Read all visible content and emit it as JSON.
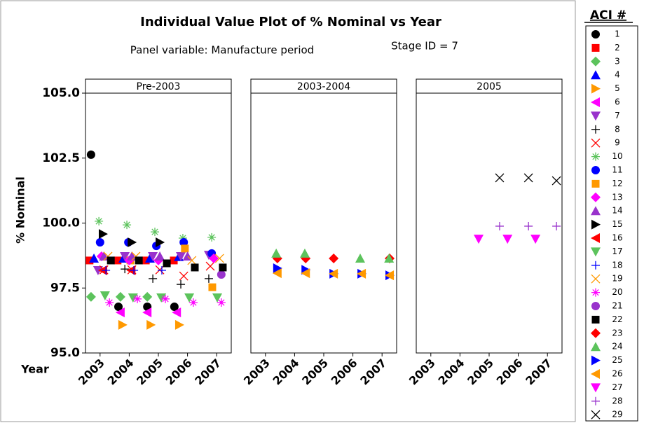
{
  "chart_data": {
    "type": "scatter",
    "title": "Individual Value Plot of % Nominal vs Year",
    "subtitle": "Panel variable: Manufacture period",
    "annotation": "Stage ID = 7",
    "ylabel": "% Nominal",
    "xlabel": "Year",
    "legend_title": "ACI #",
    "panels": [
      "Pre-2003",
      "2003-2004",
      "2005"
    ],
    "xlim": [
      2002.5,
      2007.5
    ],
    "xticks": [
      2003,
      2004,
      2005,
      2006,
      2007
    ],
    "ylim": [
      95,
      105
    ],
    "yticks": [
      {
        "value": 95,
        "label": "95.0"
      },
      97.5,
      {
        "value": 100,
        "label": "100.0"
      },
      102.5,
      {
        "value": 105,
        "label": "105.0"
      }
    ],
    "series": [
      {
        "name": "1",
        "color": "#000000",
        "marker": "circle",
        "panel": [
          "Pre-2003",
          "Pre-2003",
          "Pre-2003",
          "Pre-2003"
        ],
        "x": [
          2002.69,
          2003.63,
          2004.62,
          2005.55
        ],
        "values": [
          102.63,
          96.78,
          96.78,
          96.78
        ]
      },
      {
        "name": "2",
        "color": "#ff0000",
        "marker": "square",
        "panel": [
          "Pre-2003",
          "Pre-2003",
          "Pre-2003",
          "Pre-2003"
        ],
        "x": [
          2002.64,
          2003.6,
          2004.57,
          2005.53
        ],
        "values": [
          98.56,
          98.56,
          98.56,
          98.56
        ]
      },
      {
        "name": "3",
        "color": "#5cc35c",
        "marker": "diamond",
        "panel": [
          "Pre-2003",
          "Pre-2003",
          "Pre-2003"
        ],
        "x": [
          2002.69,
          2003.7,
          2004.62
        ],
        "values": [
          97.16,
          97.16,
          97.16
        ]
      },
      {
        "name": "4",
        "color": "#0000ff",
        "marker": "triangle",
        "panel": [
          "Pre-2003",
          "Pre-2003",
          "Pre-2003",
          "Pre-2003"
        ],
        "x": [
          2002.79,
          2003.8,
          2004.71,
          2005.7
        ],
        "values": [
          98.64,
          98.64,
          98.64,
          98.7
        ]
      },
      {
        "name": "5",
        "color": "#ff9900",
        "marker": "right",
        "panel": [
          "Pre-2003",
          "Pre-2003",
          "Pre-2003"
        ],
        "x": [
          2003.77,
          2004.74,
          2005.72
        ],
        "values": [
          96.08,
          96.08,
          96.08
        ]
      },
      {
        "name": "6",
        "color": "#ff00ff",
        "marker": "left",
        "panel": [
          "Pre-2003",
          "Pre-2003",
          "Pre-2003"
        ],
        "x": [
          2003.7,
          2004.62,
          2005.63
        ],
        "values": [
          96.56,
          96.56,
          96.56
        ]
      },
      {
        "name": "7",
        "color": "#9933cc",
        "marker": "down",
        "panel": [
          "Pre-2003",
          "Pre-2003",
          "Pre-2003",
          "Pre-2003",
          "Pre-2003"
        ],
        "x": [
          2002.93,
          2003.85,
          2004.81,
          2005.77,
          2006.73
        ],
        "values": [
          98.18,
          98.72,
          98.72,
          98.72,
          98.77
        ]
      },
      {
        "name": "8",
        "color": "#000000",
        "marker": "plus",
        "panel": [
          "Pre-2003",
          "Pre-2003",
          "Pre-2003",
          "Pre-2003"
        ],
        "x": [
          2003.85,
          2004.81,
          2005.77,
          2006.73
        ],
        "values": [
          98.23,
          97.86,
          97.64,
          97.86
        ]
      },
      {
        "name": "9",
        "color": "#ff0000",
        "marker": "x",
        "panel": [
          "Pre-2003",
          "Pre-2003",
          "Pre-2003",
          "Pre-2003",
          "Pre-2003"
        ],
        "x": [
          2003.13,
          2004.09,
          2005.05,
          2005.87,
          2006.78
        ],
        "values": [
          98.2,
          98.2,
          98.2,
          97.96,
          98.34
        ]
      },
      {
        "name": "10",
        "color": "#5cc35c",
        "marker": "asterisk",
        "panel": [
          "Pre-2003",
          "Pre-2003",
          "Pre-2003",
          "Pre-2003",
          "Pre-2003"
        ],
        "x": [
          2002.96,
          2003.92,
          2004.88,
          2005.84,
          2006.83
        ],
        "values": [
          100.07,
          99.93,
          99.66,
          99.42,
          99.45
        ]
      },
      {
        "name": "11",
        "color": "#0000ff",
        "marker": "circle",
        "panel": [
          "Pre-2003",
          "Pre-2003",
          "Pre-2003",
          "Pre-2003",
          "Pre-2003"
        ],
        "x": [
          2003.0,
          2003.97,
          2004.93,
          2005.87,
          2006.83
        ],
        "values": [
          99.26,
          99.26,
          99.12,
          99.26,
          98.83
        ]
      },
      {
        "name": "12",
        "color": "#ff9900",
        "marker": "square",
        "panel": [
          "Pre-2003",
          "Pre-2003",
          "Pre-2003"
        ],
        "x": [
          2004.04,
          2005.91,
          2006.85
        ],
        "values": [
          98.56,
          99.02,
          97.53
        ]
      },
      {
        "name": "13",
        "color": "#ff00ff",
        "marker": "diamond",
        "panel": [
          "Pre-2003",
          "Pre-2003",
          "Pre-2003",
          "Pre-2003"
        ],
        "x": [
          2003.05,
          2004.0,
          2005.0,
          2006.9
        ],
        "values": [
          98.72,
          98.56,
          98.56,
          98.64
        ]
      },
      {
        "name": "14",
        "color": "#9933cc",
        "marker": "triangle",
        "panel": [
          "Pre-2003",
          "Pre-2003",
          "Pre-2003",
          "Pre-2003"
        ],
        "x": [
          2003.13,
          2004.09,
          2005.05,
          2006.0
        ],
        "values": [
          98.72,
          98.72,
          98.72,
          98.72
        ]
      },
      {
        "name": "15",
        "color": "#000000",
        "marker": "right",
        "panel": [
          "Pre-2003",
          "Pre-2003",
          "Pre-2003"
        ],
        "x": [
          2003.1,
          2004.09,
          2005.05
        ],
        "values": [
          99.58,
          99.26,
          99.26
        ]
      },
      {
        "name": "16",
        "color": "#ff0000",
        "marker": "left",
        "panel": [
          "Pre-2003",
          "Pre-2003"
        ],
        "x": [
          2003.1,
          2004.07
        ],
        "values": [
          98.18,
          98.18
        ]
      },
      {
        "name": "17",
        "color": "#5cc35c",
        "marker": "down",
        "panel": [
          "Pre-2003",
          "Pre-2003",
          "Pre-2003",
          "Pre-2003",
          "Pre-2003"
        ],
        "x": [
          2003.17,
          2004.13,
          2005.1,
          2006.06,
          2007.02
        ],
        "values": [
          97.21,
          97.13,
          97.13,
          97.13,
          97.13
        ]
      },
      {
        "name": "18",
        "color": "#0000ff",
        "marker": "plus",
        "panel": [
          "Pre-2003",
          "Pre-2003",
          "Pre-2003"
        ],
        "x": [
          2003.2,
          2004.16,
          2005.12
        ],
        "values": [
          98.18,
          98.18,
          98.18
        ]
      },
      {
        "name": "19",
        "color": "#ff9900",
        "marker": "x",
        "panel": [
          "Pre-2003",
          "Pre-2003",
          "Pre-2003",
          "Pre-2003"
        ],
        "x": [
          2003.27,
          2004.23,
          2006.15,
          2007.1
        ],
        "values": [
          98.72,
          98.72,
          98.56,
          98.64
        ]
      },
      {
        "name": "20",
        "color": "#ff00ff",
        "marker": "asterisk",
        "panel": [
          "Pre-2003",
          "Pre-2003",
          "Pre-2003",
          "Pre-2003",
          "Pre-2003"
        ],
        "x": [
          2003.32,
          2004.28,
          2005.24,
          2006.2,
          2007.16
        ],
        "values": [
          96.94,
          97.08,
          97.08,
          96.94,
          96.94
        ]
      },
      {
        "name": "21",
        "color": "#9933cc",
        "marker": "circle",
        "panel": [
          "Pre-2003"
        ],
        "x": [
          2007.16
        ],
        "values": [
          98.02
        ]
      },
      {
        "name": "22",
        "color": "#000000",
        "marker": "square",
        "panel": [
          "Pre-2003",
          "Pre-2003",
          "Pre-2003",
          "Pre-2003",
          "Pre-2003"
        ],
        "x": [
          2003.37,
          2004.33,
          2005.29,
          2006.25,
          2007.21
        ],
        "values": [
          98.56,
          98.56,
          98.45,
          98.29,
          98.29
        ]
      },
      {
        "name": "23",
        "color": "#ff0000",
        "marker": "diamond",
        "panel": [
          "2003-2004",
          "2003-2004",
          "2003-2004",
          "2003-2004"
        ],
        "x": [
          2003.41,
          2004.38,
          2005.34,
          2007.26
        ],
        "values": [
          98.64,
          98.64,
          98.64,
          98.64
        ]
      },
      {
        "name": "24",
        "color": "#5cc35c",
        "marker": "triangle",
        "panel": [
          "2003-2004",
          "2003-2004",
          "2003-2004",
          "2003-2004"
        ],
        "x": [
          2003.37,
          2004.35,
          2006.25,
          2007.24
        ],
        "values": [
          98.83,
          98.83,
          98.64,
          98.64
        ]
      },
      {
        "name": "25",
        "color": "#0000ff",
        "marker": "right",
        "panel": [
          "2003-2004",
          "2003-2004",
          "2003-2004",
          "2003-2004",
          "2003-2004"
        ],
        "x": [
          2003.41,
          2004.38,
          2005.34,
          2006.3,
          2007.26
        ],
        "values": [
          98.26,
          98.2,
          98.05,
          98.05,
          97.99
        ]
      },
      {
        "name": "26",
        "color": "#ff9900",
        "marker": "left",
        "panel": [
          "2003-2004",
          "2003-2004",
          "2003-2004",
          "2003-2004",
          "2003-2004"
        ],
        "x": [
          2003.41,
          2004.38,
          2005.34,
          2006.3,
          2007.26
        ],
        "values": [
          98.07,
          98.07,
          98.05,
          98.05,
          97.99
        ]
      },
      {
        "name": "27",
        "color": "#ff00ff",
        "marker": "down",
        "panel": [
          "2005",
          "2005",
          "2005"
        ],
        "x": [
          2004.64,
          2005.63,
          2006.59
        ],
        "values": [
          99.39,
          99.39,
          99.39
        ]
      },
      {
        "name": "28",
        "color": "#9933cc",
        "marker": "plus",
        "panel": [
          "2005",
          "2005",
          "2005"
        ],
        "x": [
          2005.36,
          2006.35,
          2007.31
        ],
        "values": [
          99.88,
          99.88,
          99.88
        ]
      },
      {
        "name": "29",
        "color": "#000000",
        "marker": "x",
        "panel": [
          "2005",
          "2005",
          "2005"
        ],
        "x": [
          2005.36,
          2006.35,
          2007.31
        ],
        "values": [
          101.74,
          101.74,
          101.63
        ]
      }
    ]
  }
}
